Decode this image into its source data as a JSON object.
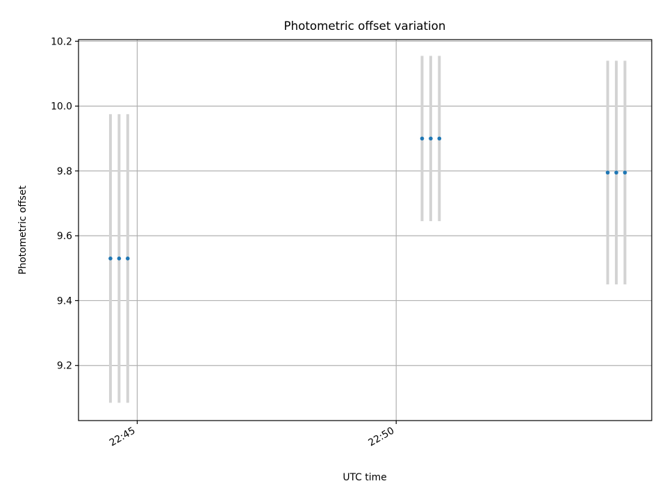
{
  "chart_data": {
    "type": "scatter",
    "title": "Photometric offset variation",
    "xlabel": "UTC time",
    "ylabel": "Photometric offset",
    "grid": true,
    "x_axis_kind": "time",
    "xlim": [
      "22:43:52",
      "22:54:56"
    ],
    "ylim": [
      9.03,
      10.205
    ],
    "x_ticks": [
      {
        "t": "22:45:00",
        "label": "22:45"
      },
      {
        "t": "22:50:00",
        "label": "22:50"
      }
    ],
    "y_ticks": [
      9.2,
      9.4,
      9.6,
      9.8,
      10.0,
      10.2
    ],
    "y_tick_labels": [
      "9.2",
      "9.4",
      "9.6",
      "9.8",
      "10.0",
      "10.2"
    ],
    "colors": {
      "points": "#1f77b4",
      "error_bars": "#d3d3d3",
      "grid": "#b0b0b0"
    },
    "series": [
      {
        "points": [
          {
            "t": "22:44:29",
            "y": 9.53,
            "err": 0.445
          },
          {
            "t": "22:44:39",
            "y": 9.53,
            "err": 0.445
          },
          {
            "t": "22:44:49",
            "y": 9.53,
            "err": 0.445
          },
          {
            "t": "22:50:30",
            "y": 9.9,
            "err": 0.255
          },
          {
            "t": "22:50:40",
            "y": 9.9,
            "err": 0.255
          },
          {
            "t": "22:50:50",
            "y": 9.9,
            "err": 0.255
          },
          {
            "t": "22:54:05",
            "y": 9.795,
            "err": 0.345
          },
          {
            "t": "22:54:15",
            "y": 9.795,
            "err": 0.345
          },
          {
            "t": "22:54:25",
            "y": 9.795,
            "err": 0.345
          }
        ]
      }
    ]
  }
}
